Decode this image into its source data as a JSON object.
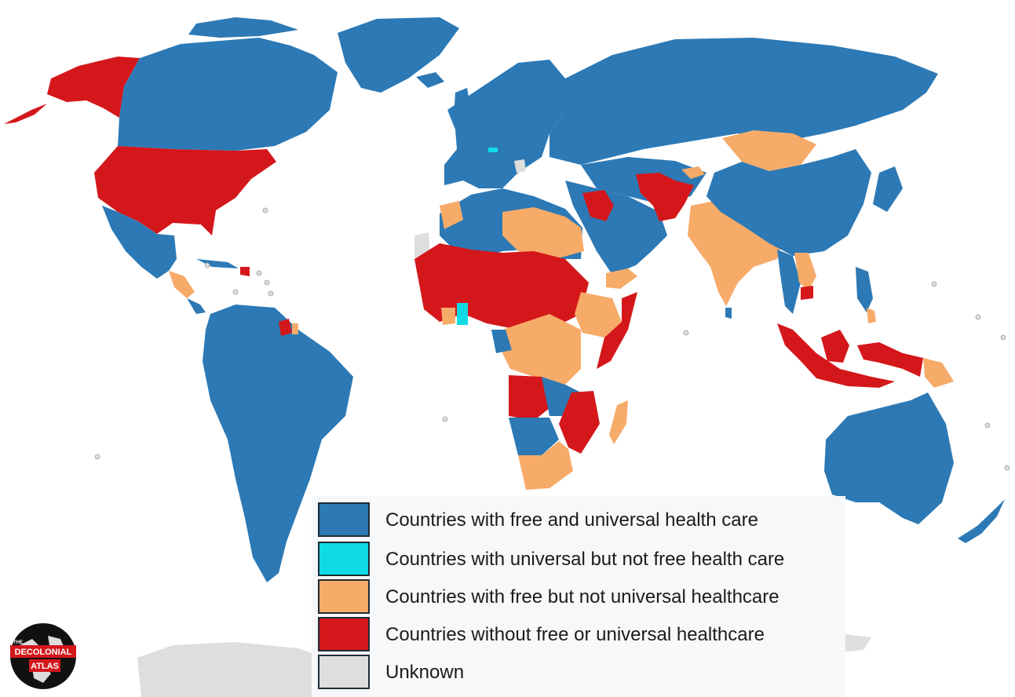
{
  "colors": {
    "free_universal": "#2c79b5",
    "universal_not_free": "#0fdbe6",
    "free_not_universal": "#f7ab69",
    "neither": "#d4171b",
    "unknown": "#dedede",
    "ocean": "#ffffff",
    "border": "#1d2b36"
  },
  "legend": {
    "items": [
      {
        "label": "Countries with free and universal health care",
        "color": "#2c79b5"
      },
      {
        "label": "Countries with universal but not free health care",
        "color": "#0fdbe6"
      },
      {
        "label": "Countries with free but not universal healthcare",
        "color": "#f7ab69"
      },
      {
        "label": "Countries without free or universal healthcare",
        "color": "#d4171b"
      },
      {
        "label": "Unknown",
        "color": "#dedede"
      }
    ]
  },
  "logo": {
    "small_text": "THE",
    "line1": "DECOLONIAL",
    "line2": "ATLAS"
  }
}
